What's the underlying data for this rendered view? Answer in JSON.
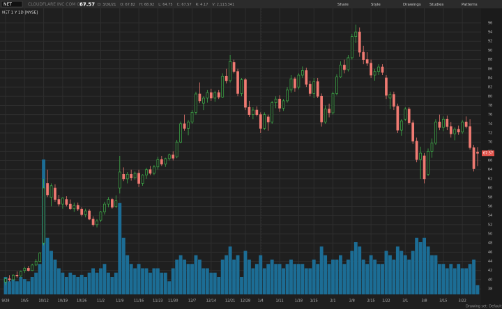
{
  "toolbar": {
    "symbol": "NET",
    "company": "CLOUDFLARE INC COM CL A",
    "last": "67.57",
    "quote": [
      "D: 3/26/21",
      "O: 67.82",
      "H: 68.92",
      "L: 64.75",
      "C: 67.57",
      "R: 4.17",
      "V: 2,113,341"
    ],
    "buttons": [
      "Share",
      "Style",
      "Drawings",
      "Studies",
      "Patterns"
    ]
  },
  "footer": "Drawing set: Default",
  "chart_data": {
    "type": "candlestick",
    "title": "NET 1 Y 1D [NYSE]",
    "up_color": "#3fb04a",
    "down_color": "#f07a72",
    "volume_color": "#1c6d95",
    "grid": true,
    "ylim": [
      36.8,
      97.8
    ],
    "yticks": [
      38,
      40,
      42,
      44,
      46,
      48,
      50,
      52,
      54,
      56,
      58,
      60,
      62,
      64,
      66,
      68,
      70,
      72,
      74,
      76,
      78,
      80,
      82,
      84,
      86,
      88,
      90,
      92,
      94,
      96
    ],
    "y2lim": [
      0,
      32
    ],
    "categories": [
      "9/28",
      null,
      null,
      null,
      null,
      "10/5",
      null,
      null,
      null,
      null,
      "10/12",
      null,
      null,
      null,
      null,
      "10/19",
      null,
      null,
      null,
      null,
      "10/26",
      null,
      null,
      null,
      null,
      "11/2",
      null,
      null,
      null,
      null,
      "11/9",
      null,
      null,
      null,
      null,
      "11/16",
      null,
      null,
      null,
      null,
      "11/23",
      null,
      null,
      null,
      "11/30",
      null,
      null,
      null,
      null,
      "12/7",
      null,
      null,
      null,
      null,
      "12/14",
      null,
      null,
      null,
      null,
      "12/21",
      null,
      null,
      null,
      "12/28",
      null,
      null,
      null,
      "1/4",
      null,
      null,
      null,
      null,
      "1/11",
      null,
      null,
      null,
      null,
      "1/18",
      null,
      null,
      null,
      "1/25",
      null,
      null,
      null,
      null,
      "2/1",
      null,
      null,
      null,
      null,
      "2/8",
      null,
      null,
      null,
      null,
      "2/15",
      null,
      null,
      null,
      "2/22",
      null,
      null,
      null,
      null,
      "3/1",
      null,
      null,
      null,
      null,
      "3/8",
      null,
      null,
      null,
      null,
      "3/15",
      null,
      null,
      null,
      null,
      "3/22",
      null,
      null,
      null,
      null
    ],
    "ohlc": [
      [
        39.5,
        40.5,
        38.8,
        40.2
      ],
      [
        40.2,
        41,
        39.6,
        40
      ],
      [
        40,
        41.2,
        39.8,
        41
      ],
      [
        41,
        41.8,
        40.4,
        40.8
      ],
      [
        40.8,
        42,
        40.5,
        41.8
      ],
      [
        42,
        42.8,
        41.5,
        42.5
      ],
      [
        42.5,
        43,
        41.8,
        42
      ],
      [
        42,
        43.5,
        41.9,
        43.2
      ],
      [
        43.2,
        44.5,
        43,
        44
      ],
      [
        44,
        46,
        43.8,
        45.8
      ],
      [
        48,
        62,
        47.5,
        60
      ],
      [
        61,
        64,
        58,
        58.5
      ],
      [
        58,
        61,
        56,
        60.5
      ],
      [
        60,
        60.8,
        57,
        57.5
      ],
      [
        57.5,
        58.5,
        56,
        56.5
      ],
      [
        56.5,
        58,
        55.5,
        57.8
      ],
      [
        57.5,
        58.2,
        56,
        56.4
      ],
      [
        56.5,
        57.5,
        55.2,
        55.5
      ],
      [
        55.5,
        56.8,
        54.8,
        56.2
      ],
      [
        56.2,
        56.8,
        55,
        55.4
      ],
      [
        55.4,
        55.8,
        53.8,
        54.2
      ],
      [
        54.2,
        55.5,
        53.6,
        55
      ],
      [
        55,
        55.4,
        53,
        53.2
      ],
      [
        53.2,
        53.8,
        51.6,
        52
      ],
      [
        52,
        53.2,
        51.4,
        52.8
      ],
      [
        53,
        55,
        52.6,
        54.8
      ],
      [
        54.8,
        57,
        54.2,
        56.5
      ],
      [
        56.5,
        58,
        55.8,
        57.5
      ],
      [
        57.5,
        57.8,
        55.5,
        55.8
      ],
      [
        56,
        58.4,
        55.6,
        57.2
      ],
      [
        60,
        67,
        58.8,
        63.5
      ],
      [
        63,
        64.5,
        61.5,
        62
      ],
      [
        62,
        63.5,
        61,
        63
      ],
      [
        63,
        64,
        61.6,
        62.2
      ],
      [
        62.2,
        63.6,
        61.8,
        63.2
      ],
      [
        63.2,
        64,
        60.2,
        61
      ],
      [
        61,
        63,
        60.5,
        62.8
      ],
      [
        62.8,
        64.4,
        62,
        64
      ],
      [
        64,
        64.8,
        62.8,
        63.2
      ],
      [
        63.2,
        65,
        62.8,
        64.6
      ],
      [
        64.6,
        66.8,
        64,
        66.2
      ],
      [
        66.2,
        67,
        64.8,
        65.2
      ],
      [
        65.2,
        66.6,
        64.6,
        66.4
      ],
      [
        66.4,
        67.5,
        66,
        67.2
      ],
      [
        67.2,
        68,
        66,
        66.5
      ],
      [
        66.8,
        70.5,
        66.5,
        70
      ],
      [
        70,
        74.5,
        69.8,
        74
      ],
      [
        74,
        76,
        72.5,
        73
      ],
      [
        73,
        74.8,
        71.5,
        74.4
      ],
      [
        74.4,
        77,
        74,
        76.5
      ],
      [
        76.5,
        81,
        76,
        80.5
      ],
      [
        80.5,
        83,
        78.5,
        79
      ],
      [
        78.5,
        80,
        77,
        79.6
      ],
      [
        79.6,
        81.4,
        78.6,
        80.8
      ],
      [
        80.8,
        81.6,
        79,
        79.6
      ],
      [
        79.6,
        81.2,
        78.8,
        80.8
      ],
      [
        80.8,
        81.4,
        79.4,
        79.8
      ],
      [
        79.8,
        85,
        79.6,
        84.4
      ],
      [
        84.4,
        86,
        82.8,
        83.4
      ],
      [
        83.4,
        89,
        83,
        87.6
      ],
      [
        87.4,
        88,
        85,
        85.4
      ],
      [
        85.4,
        86,
        80,
        80.6
      ],
      [
        80.6,
        84,
        80,
        83.6
      ],
      [
        83.6,
        84,
        77,
        77.6
      ],
      [
        77.6,
        79,
        75.5,
        76
      ],
      [
        76,
        77.6,
        75,
        77
      ],
      [
        77,
        77.8,
        75.6,
        76
      ],
      [
        76,
        76.5,
        72,
        73
      ],
      [
        73,
        76.5,
        72.6,
        76
      ],
      [
        75.5,
        76,
        72.5,
        74.4
      ],
      [
        74.4,
        79,
        74,
        78.6
      ],
      [
        78.6,
        80,
        77.4,
        79.4
      ],
      [
        79.4,
        80.2,
        76.6,
        77.4
      ],
      [
        77.4,
        79.4,
        76.8,
        79
      ],
      [
        79,
        82,
        78.6,
        81.4
      ],
      [
        81.4,
        84.6,
        80.8,
        83.8
      ],
      [
        83.8,
        84.2,
        81,
        81.8
      ],
      [
        82,
        85,
        81.5,
        84.6
      ],
      [
        84.6,
        86.5,
        84,
        85.6
      ],
      [
        85.6,
        86.2,
        82,
        82.6
      ],
      [
        82.6,
        83.4,
        80,
        80.6
      ],
      [
        80.6,
        84,
        79.6,
        83.2
      ],
      [
        83.2,
        84,
        79.6,
        80
      ],
      [
        80,
        80.6,
        73.4,
        74.4
      ],
      [
        74.4,
        78,
        74,
        77.2
      ],
      [
        77.2,
        78.4,
        75.4,
        76.4
      ],
      [
        76.4,
        81,
        76,
        80.6
      ],
      [
        80.6,
        84.8,
        80.2,
        84.2
      ],
      [
        84.2,
        87.6,
        84,
        86.8
      ],
      [
        86.8,
        88,
        85,
        85.8
      ],
      [
        85.8,
        89,
        85.4,
        88.4
      ],
      [
        88.4,
        93.6,
        88,
        93
      ],
      [
        93,
        95.6,
        91.6,
        94
      ],
      [
        94,
        95,
        88.6,
        89.6
      ],
      [
        89.6,
        91,
        87,
        88
      ],
      [
        88,
        89.6,
        86.6,
        87.2
      ],
      [
        87.2,
        88,
        84,
        84.6
      ],
      [
        84.6,
        86,
        83.4,
        85.4
      ],
      [
        85.4,
        87,
        84.6,
        86.4
      ],
      [
        86.4,
        87,
        84.6,
        85.2
      ],
      [
        84,
        84.6,
        79.4,
        80.2
      ],
      [
        79.6,
        81,
        77.2,
        80.4
      ],
      [
        80.4,
        81,
        77,
        77.8
      ],
      [
        77.8,
        78.4,
        72,
        72.6
      ],
      [
        72.6,
        75,
        71.4,
        74.6
      ],
      [
        75,
        77.6,
        74.6,
        77.2
      ],
      [
        77.2,
        77.6,
        73.8,
        74.2
      ],
      [
        74.2,
        74.8,
        69.6,
        70.2
      ],
      [
        70.2,
        71,
        65.6,
        66.2
      ],
      [
        66.2,
        69,
        62,
        67.6
      ],
      [
        67,
        67.6,
        61,
        62
      ],
      [
        63,
        68.6,
        62.6,
        68
      ],
      [
        68,
        70.8,
        66.6,
        69.8
      ],
      [
        69.8,
        75,
        69.4,
        74.4
      ],
      [
        74.4,
        76,
        72.6,
        73.2
      ],
      [
        73.2,
        75.6,
        72.4,
        75
      ],
      [
        75,
        75.8,
        72.6,
        73.4
      ],
      [
        73.4,
        74.4,
        71,
        71.8
      ],
      [
        71.8,
        73.2,
        70.4,
        72.8
      ],
      [
        72.8,
        73.6,
        71.6,
        72.2
      ],
      [
        72.2,
        74.8,
        71.8,
        74.4
      ],
      [
        74.4,
        75.6,
        73,
        73.4
      ],
      [
        73.4,
        75,
        68.4,
        68.8
      ],
      [
        68.8,
        69.4,
        63.6,
        64.2
      ],
      [
        67.82,
        68.92,
        64.75,
        67.57
      ]
    ],
    "volume": [
      4,
      3,
      3.5,
      3,
      4,
      3.5,
      3,
      4,
      5,
      7,
      31,
      13,
      10,
      8,
      6,
      5,
      4,
      5,
      4.5,
      4,
      4.5,
      4,
      5,
      6,
      5,
      6,
      7,
      5,
      4,
      5,
      21,
      13,
      9,
      7,
      6,
      7,
      6,
      6,
      5,
      6,
      6,
      5,
      5,
      3,
      6,
      8,
      9,
      8,
      7,
      7,
      9,
      8,
      6,
      6,
      5,
      5,
      4,
      8,
      9,
      11,
      8,
      9,
      4,
      10,
      8,
      6,
      7,
      9,
      6,
      7,
      8,
      7,
      7,
      6,
      7,
      8,
      7,
      7,
      7,
      6,
      6,
      8,
      7,
      11,
      9,
      7,
      8,
      8,
      9,
      7,
      8,
      10,
      12,
      11,
      8,
      7,
      9,
      8,
      7,
      7,
      10,
      9,
      8,
      11,
      10,
      9,
      8,
      10,
      13,
      12,
      13,
      11,
      9,
      9,
      7,
      7,
      6,
      7,
      6,
      7,
      6,
      6,
      7,
      8,
      2.113341
    ]
  }
}
